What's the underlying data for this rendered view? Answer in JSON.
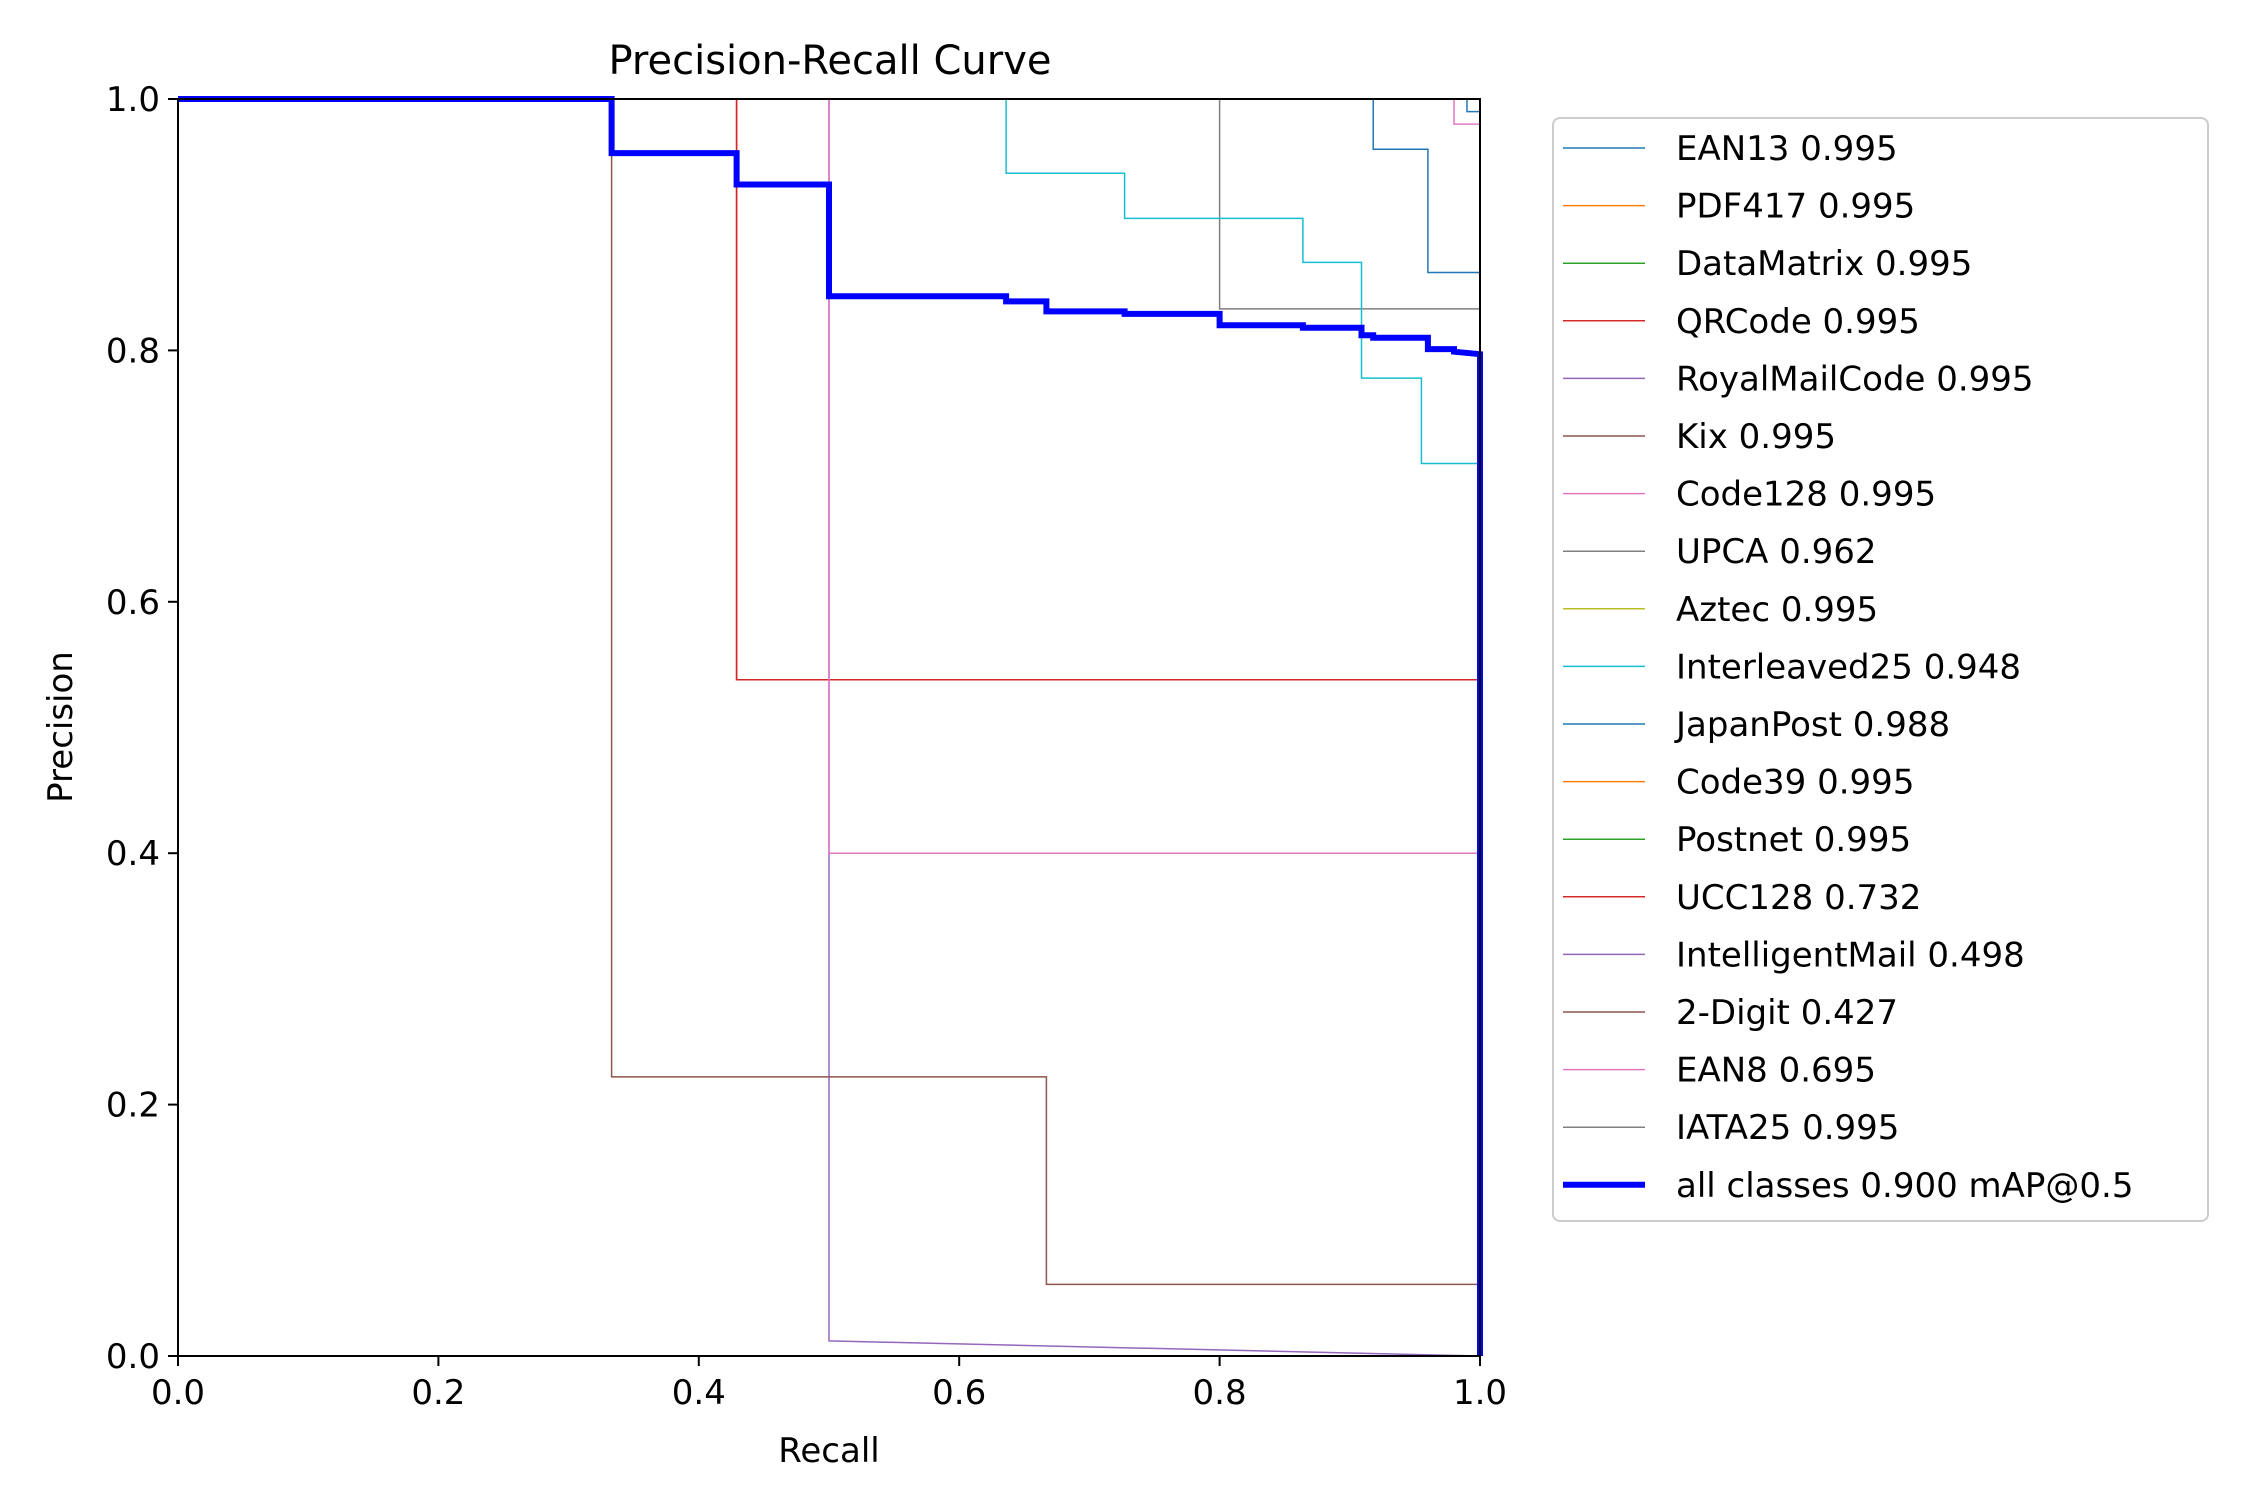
{
  "chart_data": {
    "type": "line",
    "title": "Precision-Recall Curve",
    "xlabel": "Recall",
    "ylabel": "Precision",
    "xlim": [
      0.0,
      1.0
    ],
    "ylim": [
      0.0,
      1.0
    ],
    "x_ticks": [
      "0.0",
      "0.2",
      "0.4",
      "0.6",
      "0.8",
      "1.0"
    ],
    "y_ticks": [
      "0.0",
      "0.2",
      "0.4",
      "0.6",
      "0.8",
      "1.0"
    ],
    "grid": false,
    "legend_position": "outside-right",
    "series": [
      {
        "name": "EAN13 0.995",
        "color": "#1f77b4",
        "width": 1.5,
        "points": [
          [
            0,
            1
          ],
          [
            0.918,
            1
          ],
          [
            0.918,
            0.96
          ],
          [
            0.96,
            0.96
          ],
          [
            0.96,
            0.862
          ],
          [
            1.0,
            0.862
          ],
          [
            1.0,
            0
          ]
        ]
      },
      {
        "name": "PDF417 0.995",
        "color": "#ff7f0e",
        "width": 1.5,
        "points": [
          [
            0,
            1
          ],
          [
            1.0,
            1
          ],
          [
            1.0,
            0
          ]
        ]
      },
      {
        "name": "DataMatrix 0.995",
        "color": "#2ca02c",
        "width": 1.5,
        "points": [
          [
            0,
            1
          ],
          [
            1.0,
            1
          ],
          [
            1.0,
            0
          ]
        ]
      },
      {
        "name": "QRCode 0.995",
        "color": "#d62728",
        "width": 1.5,
        "points": [
          [
            0,
            1
          ],
          [
            0.429,
            1
          ],
          [
            0.429,
            0.538
          ],
          [
            1.0,
            0.538
          ],
          [
            1.0,
            0
          ]
        ]
      },
      {
        "name": "RoyalMailCode 0.995",
        "color": "#9467bd",
        "width": 1.5,
        "points": [
          [
            0,
            1
          ],
          [
            1.0,
            1
          ],
          [
            1.0,
            0
          ]
        ]
      },
      {
        "name": "Kix 0.995",
        "color": "#8c564b",
        "width": 1.5,
        "points": [
          [
            0,
            1
          ],
          [
            1.0,
            1
          ],
          [
            1.0,
            0
          ]
        ]
      },
      {
        "name": "Code128 0.995",
        "color": "#e377c2",
        "width": 1.5,
        "points": [
          [
            0,
            1
          ],
          [
            0.98,
            1
          ],
          [
            0.98,
            0.98
          ],
          [
            1.0,
            0.98
          ],
          [
            1.0,
            0
          ]
        ]
      },
      {
        "name": "UPCA 0.962",
        "color": "#7f7f7f",
        "width": 1.5,
        "points": [
          [
            0,
            1
          ],
          [
            0.8,
            1
          ],
          [
            0.8,
            0.833
          ],
          [
            1.0,
            0.833
          ],
          [
            1.0,
            0
          ]
        ]
      },
      {
        "name": "Aztec 0.995",
        "color": "#bcbd22",
        "width": 1.5,
        "points": [
          [
            0,
            1
          ],
          [
            1.0,
            1
          ],
          [
            1.0,
            0
          ]
        ]
      },
      {
        "name": "Interleaved25 0.948",
        "color": "#17becf",
        "width": 1.5,
        "points": [
          [
            0,
            1
          ],
          [
            0.636,
            1
          ],
          [
            0.636,
            0.941
          ],
          [
            0.727,
            0.941
          ],
          [
            0.727,
            0.905
          ],
          [
            0.864,
            0.905
          ],
          [
            0.864,
            0.87
          ],
          [
            0.909,
            0.87
          ],
          [
            0.909,
            0.778
          ],
          [
            0.955,
            0.778
          ],
          [
            0.955,
            0.71
          ],
          [
            1.0,
            0.71
          ],
          [
            1.0,
            0
          ]
        ]
      },
      {
        "name": "JapanPost 0.988",
        "color": "#1f77b4",
        "width": 1.5,
        "points": [
          [
            0,
            1
          ],
          [
            0.99,
            1
          ],
          [
            0.99,
            0.99
          ],
          [
            1.0,
            0.99
          ],
          [
            1.0,
            0
          ]
        ]
      },
      {
        "name": "Code39 0.995",
        "color": "#ff7f0e",
        "width": 1.5,
        "points": [
          [
            0,
            1
          ],
          [
            1.0,
            1
          ],
          [
            1.0,
            0
          ]
        ]
      },
      {
        "name": "Postnet 0.995",
        "color": "#2ca02c",
        "width": 1.5,
        "points": [
          [
            0,
            1
          ],
          [
            1.0,
            1
          ],
          [
            1.0,
            0
          ]
        ]
      },
      {
        "name": "UCC128 0.732",
        "color": "#d62728",
        "width": 1.5,
        "points": [
          [
            0,
            1
          ],
          [
            0.429,
            1
          ],
          [
            0.429,
            0.538
          ],
          [
            1.0,
            0.538
          ],
          [
            1.0,
            0
          ]
        ]
      },
      {
        "name": "IntelligentMail 0.498",
        "color": "#9467bd",
        "width": 1.5,
        "points": [
          [
            0,
            1
          ],
          [
            0.5,
            1
          ],
          [
            0.5,
            0.012
          ],
          [
            1.0,
            0
          ],
          [
            1.0,
            0
          ]
        ]
      },
      {
        "name": "2-Digit 0.427",
        "color": "#8c564b",
        "width": 1.5,
        "points": [
          [
            0,
            1
          ],
          [
            0.333,
            1
          ],
          [
            0.333,
            0.222
          ],
          [
            0.667,
            0.222
          ],
          [
            0.667,
            0.057
          ],
          [
            1.0,
            0.057
          ],
          [
            1.0,
            0
          ]
        ]
      },
      {
        "name": "EAN8 0.695",
        "color": "#e377c2",
        "width": 1.5,
        "points": [
          [
            0,
            1
          ],
          [
            0.5,
            1
          ],
          [
            0.5,
            0.4
          ],
          [
            1.0,
            0.4
          ],
          [
            1.0,
            0
          ]
        ]
      },
      {
        "name": "IATA25 0.995",
        "color": "#7f7f7f",
        "width": 1.5,
        "points": [
          [
            0,
            1
          ],
          [
            1.0,
            1
          ],
          [
            1.0,
            0
          ]
        ]
      },
      {
        "name": "all classes 0.900 mAP@0.5",
        "color": "#0000ff",
        "width": 6,
        "points": [
          [
            0,
            1
          ],
          [
            0.333,
            1
          ],
          [
            0.333,
            0.957
          ],
          [
            0.429,
            0.957
          ],
          [
            0.429,
            0.932
          ],
          [
            0.5,
            0.932
          ],
          [
            0.5,
            0.843
          ],
          [
            0.636,
            0.843
          ],
          [
            0.636,
            0.839
          ],
          [
            0.667,
            0.839
          ],
          [
            0.667,
            0.831
          ],
          [
            0.727,
            0.831
          ],
          [
            0.727,
            0.829
          ],
          [
            0.8,
            0.829
          ],
          [
            0.8,
            0.82
          ],
          [
            0.864,
            0.82
          ],
          [
            0.864,
            0.818
          ],
          [
            0.909,
            0.818
          ],
          [
            0.909,
            0.812
          ],
          [
            0.918,
            0.812
          ],
          [
            0.918,
            0.81
          ],
          [
            0.96,
            0.81
          ],
          [
            0.96,
            0.801
          ],
          [
            0.98,
            0.801
          ],
          [
            0.98,
            0.799
          ],
          [
            1.0,
            0.797
          ],
          [
            1.0,
            0
          ]
        ]
      }
    ]
  }
}
